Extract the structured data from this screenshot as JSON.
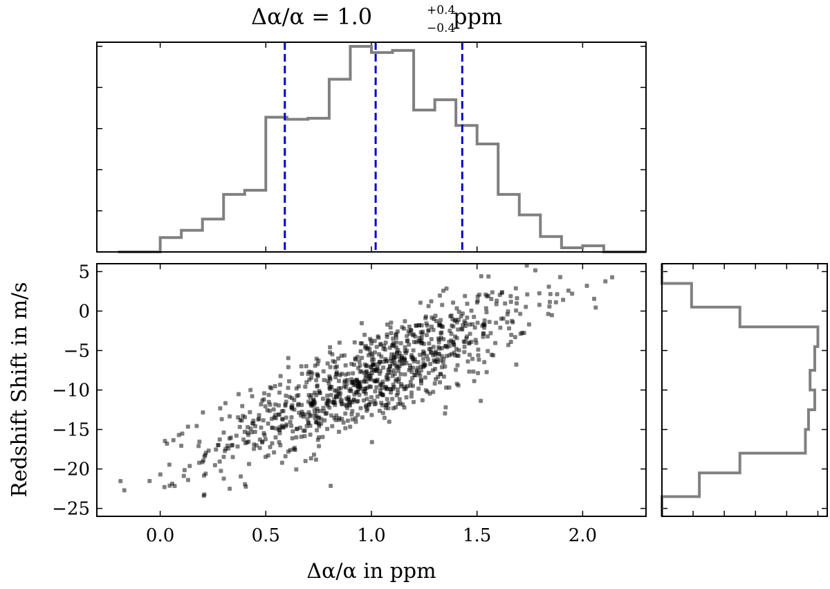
{
  "title": {
    "lhs": "Δα/α = 1.0",
    "upper": "+0.4",
    "lower": "−0.4",
    "unit": "ppm"
  },
  "colors": {
    "hist": "#808080",
    "quantile": "#0000cc",
    "points": "#000000",
    "axes": "#000000"
  },
  "chart_data": [
    {
      "id": "top-histogram",
      "type": "histogram",
      "xlim": [
        -0.3,
        2.3
      ],
      "ylim": [
        0,
        1.02
      ],
      "yticks": [
        0.2,
        0.4,
        0.6,
        0.8,
        1.0
      ],
      "show_tick_labels": false,
      "bins": [
        {
          "x0": -0.2,
          "x1": 0.0,
          "height": 0.0
        },
        {
          "x0": 0.0,
          "x1": 0.1,
          "height": 0.07
        },
        {
          "x0": 0.1,
          "x1": 0.2,
          "height": 0.105
        },
        {
          "x0": 0.2,
          "x1": 0.3,
          "height": 0.16
        },
        {
          "x0": 0.3,
          "x1": 0.4,
          "height": 0.28
        },
        {
          "x0": 0.4,
          "x1": 0.5,
          "height": 0.3
        },
        {
          "x0": 0.5,
          "x1": 0.6,
          "height": 0.655
        },
        {
          "x0": 0.6,
          "x1": 0.7,
          "height": 0.645
        },
        {
          "x0": 0.7,
          "x1": 0.8,
          "height": 0.65
        },
        {
          "x0": 0.8,
          "x1": 0.9,
          "height": 0.84
        },
        {
          "x0": 0.9,
          "x1": 1.0,
          "height": 1.0
        },
        {
          "x0": 1.0,
          "x1": 1.1,
          "height": 0.97
        },
        {
          "x0": 1.1,
          "x1": 1.2,
          "height": 0.98
        },
        {
          "x0": 1.2,
          "x1": 1.3,
          "height": 0.69
        },
        {
          "x0": 1.3,
          "x1": 1.4,
          "height": 0.74
        },
        {
          "x0": 1.4,
          "x1": 1.5,
          "height": 0.615
        },
        {
          "x0": 1.5,
          "x1": 1.6,
          "height": 0.525
        },
        {
          "x0": 1.6,
          "x1": 1.7,
          "height": 0.28
        },
        {
          "x0": 1.7,
          "x1": 1.8,
          "height": 0.18
        },
        {
          "x0": 1.8,
          "x1": 1.9,
          "height": 0.075
        },
        {
          "x0": 1.9,
          "x1": 2.0,
          "height": 0.02
        },
        {
          "x0": 2.0,
          "x1": 2.1,
          "height": 0.03
        },
        {
          "x0": 2.1,
          "x1": 2.3,
          "height": 0.0
        }
      ],
      "quantiles": [
        0.59,
        1.02,
        1.43
      ]
    },
    {
      "id": "scatter",
      "type": "scatter",
      "xlabel": "Δα/α in ppm",
      "ylabel": "Redshift Shift in m/s",
      "xlim": [
        -0.3,
        2.3
      ],
      "ylim": [
        -26,
        6
      ],
      "xticks": [
        0.0,
        0.5,
        1.0,
        1.5,
        2.0
      ],
      "xtick_labels": [
        "0.0",
        "0.5",
        "1.0",
        "1.5",
        "2.0"
      ],
      "yticks": [
        5,
        0,
        -5,
        -10,
        -15,
        -20,
        -25
      ],
      "ytick_labels": [
        "5",
        "0",
        "−5",
        "−10",
        "−15",
        "−20",
        "−25"
      ],
      "n_points": 1000,
      "mean": [
        1.0,
        -8.5
      ],
      "std": [
        0.38,
        5.3
      ],
      "correlation": 0.83,
      "extreme_points": [
        {
          "x": -0.17,
          "y": -22.7
        },
        {
          "x": 2.02,
          "y": 3.2
        },
        {
          "x": 1.95,
          "y": 2.2
        },
        {
          "x": 0.02,
          "y": -22.3
        }
      ]
    },
    {
      "id": "right-histogram",
      "type": "histogram",
      "orientation": "horizontal",
      "ylim": [
        -26,
        6
      ],
      "xlim": [
        0,
        1.06
      ],
      "xticks": [
        0.2,
        0.4,
        0.6,
        0.8,
        1.0
      ],
      "show_tick_labels": false,
      "bins": [
        {
          "y0": 3.5,
          "y1": 6.0,
          "width": 0.0
        },
        {
          "y0": 0.5,
          "y1": 3.5,
          "width": 0.19
        },
        {
          "y0": -2.0,
          "y1": 0.5,
          "width": 0.5
        },
        {
          "y0": -4.5,
          "y1": -2.0,
          "width": 1.0
        },
        {
          "y0": -7.5,
          "y1": -4.5,
          "width": 0.98
        },
        {
          "y0": -10.0,
          "y1": -7.5,
          "width": 0.95
        },
        {
          "y0": -12.5,
          "y1": -10.0,
          "width": 0.98
        },
        {
          "y0": -15.0,
          "y1": -12.5,
          "width": 0.94
        },
        {
          "y0": -18.0,
          "y1": -15.0,
          "width": 0.92
        },
        {
          "y0": -20.5,
          "y1": -18.0,
          "width": 0.5
        },
        {
          "y0": -23.5,
          "y1": -20.5,
          "width": 0.24
        },
        {
          "y0": -26.0,
          "y1": -23.5,
          "width": 0.0
        }
      ]
    }
  ]
}
